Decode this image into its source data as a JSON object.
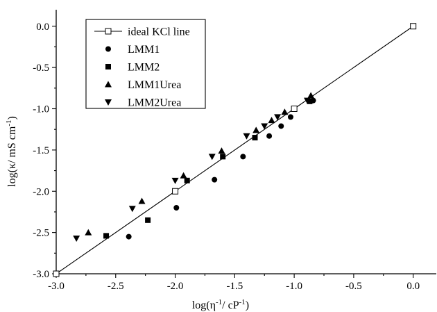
{
  "chart_data": {
    "type": "scatter",
    "title": "",
    "xlabel_main": "log(η",
    "xlabel_sup1": "-1",
    "xlabel_mid": "/ cP",
    "xlabel_sup2": "-1",
    "xlabel_end": ")",
    "ylabel_main": "log(κ/ mS cm",
    "ylabel_sup": "-1",
    "ylabel_end": ")",
    "xlim": [
      -3.0,
      0.2
    ],
    "ylim": [
      -3.0,
      0.2
    ],
    "x_ticks": [
      -3.0,
      -2.5,
      -2.0,
      -1.5,
      -1.0,
      -0.5,
      0.0
    ],
    "x_tick_labels": [
      "-3.0",
      "-2.5",
      "-2.0",
      "-1.5",
      "-1.0",
      "-0.5",
      "0.0"
    ],
    "y_ticks": [
      -3.0,
      -2.5,
      -2.0,
      -1.5,
      -1.0,
      -0.5,
      0.0
    ],
    "y_tick_labels": [
      "-3.0",
      "-2.5",
      "-2.0",
      "-1.5",
      "-1.0",
      "-0.5",
      "0.0"
    ],
    "grid": false,
    "legend_position": "top-left",
    "series": [
      {
        "name": "ideal KCl line",
        "marker": "open-square",
        "line": true,
        "points": [
          [
            -3.0,
            -3.0
          ],
          [
            -2.0,
            -2.0
          ],
          [
            -1.0,
            -1.0
          ],
          [
            0.0,
            0.0
          ]
        ]
      },
      {
        "name": "LMM1",
        "marker": "circle",
        "points": [
          [
            -2.39,
            -2.55
          ],
          [
            -1.99,
            -2.2
          ],
          [
            -1.67,
            -1.86
          ],
          [
            -1.43,
            -1.58
          ],
          [
            -1.21,
            -1.33
          ],
          [
            -1.11,
            -1.21
          ],
          [
            -1.03,
            -1.1
          ],
          [
            -0.84,
            -0.9
          ]
        ]
      },
      {
        "name": "LMM2",
        "marker": "square",
        "points": [
          [
            -2.58,
            -2.54
          ],
          [
            -2.23,
            -2.35
          ],
          [
            -1.9,
            -1.87
          ],
          [
            -1.6,
            -1.58
          ],
          [
            -1.33,
            -1.35
          ],
          [
            -0.87,
            -0.91
          ]
        ]
      },
      {
        "name": "LMM1Urea",
        "marker": "triangle-up",
        "points": [
          [
            -2.73,
            -2.5
          ],
          [
            -2.28,
            -2.12
          ],
          [
            -1.93,
            -1.81
          ],
          [
            -1.61,
            -1.51
          ],
          [
            -1.32,
            -1.26
          ],
          [
            -1.19,
            -1.14
          ],
          [
            -1.08,
            -1.04
          ],
          [
            -0.86,
            -0.84
          ]
        ]
      },
      {
        "name": "LMM2Urea",
        "marker": "triangle-down",
        "points": [
          [
            -2.83,
            -2.57
          ],
          [
            -2.36,
            -2.21
          ],
          [
            -2.0,
            -1.87
          ],
          [
            -1.69,
            -1.58
          ],
          [
            -1.4,
            -1.33
          ],
          [
            -1.25,
            -1.21
          ],
          [
            -1.14,
            -1.1
          ],
          [
            -0.89,
            -0.9
          ]
        ]
      }
    ]
  }
}
